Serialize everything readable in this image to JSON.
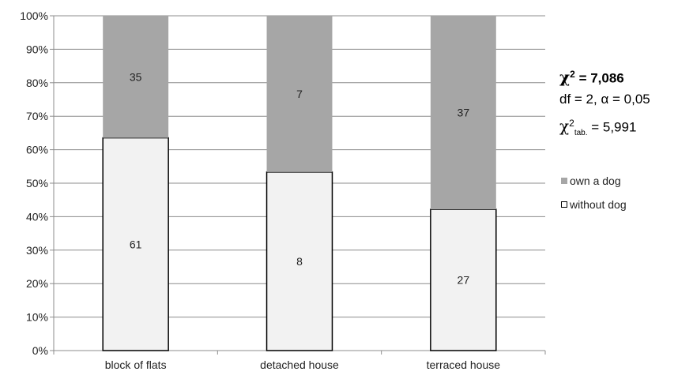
{
  "chart_data": {
    "type": "bar",
    "stacked": true,
    "percent_stacked": true,
    "categories": [
      "block of flats",
      "detached house",
      "terraced house"
    ],
    "series": [
      {
        "name": "without dog",
        "values": [
          61,
          8,
          27
        ],
        "color": "#f2f2f2",
        "border": "#000000"
      },
      {
        "name": "own a dog",
        "values": [
          35,
          7,
          37
        ],
        "color": "#a6a6a6"
      }
    ],
    "y_ticks": [
      "0%",
      "10%",
      "20%",
      "30%",
      "40%",
      "50%",
      "60%",
      "70%",
      "80%",
      "90%",
      "100%"
    ],
    "ylim": [
      0,
      100
    ],
    "grid": true,
    "legend_position": "right"
  },
  "stats": {
    "chi_symbol": "χ",
    "superscript": "2",
    "chi_value": " = 7,086",
    "df_alpha": "df = 2, α = 0,05",
    "tab_subscript": "tab.",
    "tab_value": " = 5,991"
  },
  "legend": {
    "items": [
      {
        "label": "own a dog",
        "color": "#a6a6a6",
        "border": "#a6a6a6"
      },
      {
        "label": "without dog",
        "color": "#ffffff",
        "border": "#000000"
      }
    ]
  }
}
